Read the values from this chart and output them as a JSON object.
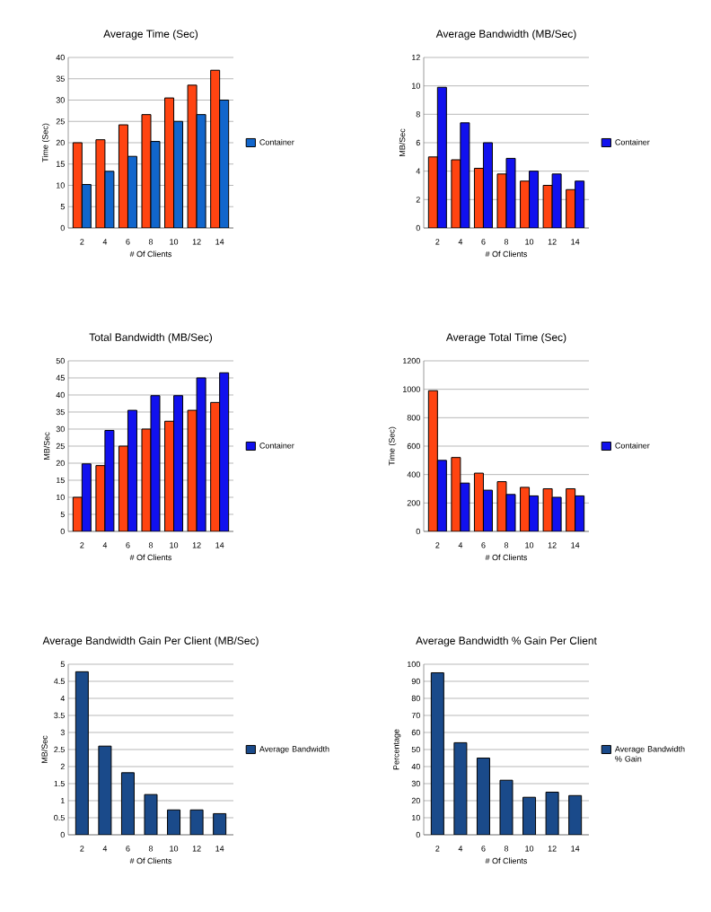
{
  "chart_data": [
    {
      "type": "bar",
      "title": "Average Time (Sec)",
      "xlabel": "# Of Clients",
      "ylabel": "Time (Sec)",
      "categories": [
        "2",
        "4",
        "6",
        "8",
        "10",
        "12",
        "14"
      ],
      "ylim": [
        0,
        40
      ],
      "yticks": [
        0,
        5,
        10,
        15,
        20,
        25,
        30,
        35,
        40
      ],
      "grid": "y",
      "legend": "right",
      "series": [
        {
          "color": "#ff4411",
          "values": [
            20,
            20.7,
            24.2,
            26.6,
            30.5,
            33.5,
            37
          ]
        },
        {
          "name": "Container",
          "color": "#1166cc",
          "values": [
            10.2,
            13.3,
            16.8,
            20.3,
            25,
            26.6,
            30
          ]
        }
      ]
    },
    {
      "type": "bar",
      "title": "Average Bandwidth (MB/Sec)",
      "xlabel": "# Of Clients",
      "ylabel": "MB/Sec",
      "categories": [
        "2",
        "4",
        "6",
        "8",
        "10",
        "12",
        "14"
      ],
      "ylim": [
        0,
        12
      ],
      "yticks": [
        0,
        2,
        4,
        6,
        8,
        10,
        12
      ],
      "grid": "y",
      "legend": "right",
      "series": [
        {
          "color": "#ff4411",
          "values": [
            5.0,
            4.8,
            4.2,
            3.8,
            3.3,
            3.0,
            2.7
          ]
        },
        {
          "name": "Container",
          "color": "#1111ee",
          "values": [
            9.9,
            7.4,
            6.0,
            4.9,
            4.0,
            3.8,
            3.3
          ]
        }
      ]
    },
    {
      "type": "bar",
      "title": "Total Bandwidth (MB/Sec)",
      "xlabel": "# Of Clients",
      "ylabel": "MB/Sec",
      "categories": [
        "2",
        "4",
        "6",
        "8",
        "10",
        "12",
        "14"
      ],
      "ylim": [
        0,
        50
      ],
      "yticks": [
        0,
        5,
        10,
        15,
        20,
        25,
        30,
        35,
        40,
        45,
        50
      ],
      "grid": "y",
      "legend": "right",
      "series": [
        {
          "color": "#ff4411",
          "values": [
            10,
            19.3,
            25,
            30,
            32.3,
            35.5,
            37.8
          ]
        },
        {
          "name": "Container",
          "color": "#1111ee",
          "values": [
            19.8,
            29.6,
            35.5,
            39.8,
            39.8,
            45,
            46.5
          ]
        }
      ]
    },
    {
      "type": "bar",
      "title": "Average Total Time (Sec)",
      "xlabel": "# Of Clients",
      "ylabel": "Time (Sec)",
      "categories": [
        "2",
        "4",
        "6",
        "8",
        "10",
        "12",
        "14"
      ],
      "ylim": [
        0,
        1200
      ],
      "yticks": [
        0,
        200,
        400,
        600,
        800,
        1000,
        1200
      ],
      "grid": "y",
      "legend": "right",
      "series": [
        {
          "color": "#ff4411",
          "values": [
            990,
            520,
            410,
            350,
            310,
            300,
            300
          ]
        },
        {
          "name": "Container",
          "color": "#1111ee",
          "values": [
            500,
            340,
            290,
            260,
            250,
            240,
            250
          ]
        }
      ]
    },
    {
      "type": "bar",
      "title": "Average Bandwidth Gain Per Client (MB/Sec)",
      "xlabel": "# Of Clients",
      "ylabel": "MB/Sec",
      "categories": [
        "2",
        "4",
        "6",
        "8",
        "10",
        "12",
        "14"
      ],
      "ylim": [
        0,
        5
      ],
      "yticks": [
        0,
        0.5,
        1,
        1.5,
        2,
        2.5,
        3,
        3.5,
        4,
        4.5,
        5
      ],
      "grid": "y",
      "legend": "right",
      "series": [
        {
          "name": "Average Bandwidth",
          "color": "#1a4a8a",
          "values": [
            4.78,
            2.6,
            1.82,
            1.18,
            0.73,
            0.73,
            0.62
          ]
        }
      ]
    },
    {
      "type": "bar",
      "title": "Average Bandwidth % Gain Per Client",
      "xlabel": "# Of Clients",
      "ylabel": "Percentage",
      "categories": [
        "2",
        "4",
        "6",
        "8",
        "10",
        "12",
        "14"
      ],
      "ylim": [
        0,
        100
      ],
      "yticks": [
        0,
        10,
        20,
        30,
        40,
        50,
        60,
        70,
        80,
        90,
        100
      ],
      "grid": "y",
      "legend": "right",
      "series": [
        {
          "name": "Average Bandwidth % Gain",
          "color": "#1a4a8a",
          "values": [
            95,
            54,
            45,
            32,
            22,
            25,
            23
          ]
        }
      ]
    }
  ]
}
